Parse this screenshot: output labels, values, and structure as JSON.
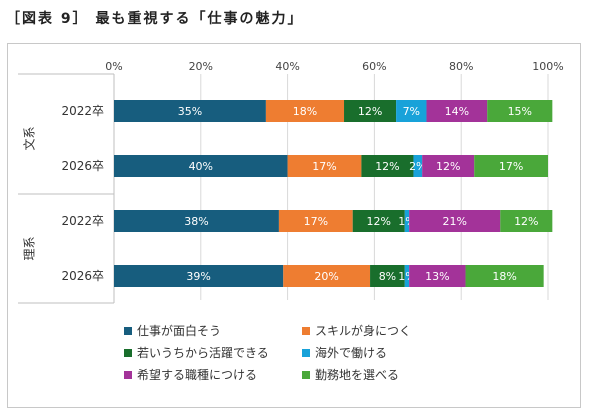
{
  "title": "［図表 9］ 最も重視する「仕事の魅力」",
  "chart_data": {
    "type": "bar",
    "orientation": "horizontal",
    "stacked": true,
    "xlim": [
      0,
      100
    ],
    "x_ticks": [
      "0%",
      "20%",
      "40%",
      "60%",
      "80%",
      "100%"
    ],
    "grid": true,
    "groups": [
      {
        "label": "文系",
        "categories": [
          "2022卒",
          "2026卒"
        ]
      },
      {
        "label": "理系",
        "categories": [
          "2022卒",
          "2026卒"
        ]
      }
    ],
    "categories": [
      "2022卒",
      "2026卒",
      "2022卒",
      "2026卒"
    ],
    "series": [
      {
        "name": "仕事が面白そう",
        "color": "#175d7e",
        "values": [
          35,
          40,
          38,
          39
        ]
      },
      {
        "name": "スキルが身につく",
        "color": "#ee7d31",
        "values": [
          18,
          17,
          17,
          20
        ]
      },
      {
        "name": "若いうちから活躍できる",
        "color": "#196e2c",
        "values": [
          12,
          12,
          12,
          8
        ]
      },
      {
        "name": "海外で働ける",
        "color": "#18a2d9",
        "values": [
          7,
          2,
          1,
          1
        ]
      },
      {
        "name": "希望する職種につける",
        "color": "#a33399",
        "values": [
          14,
          12,
          21,
          13
        ]
      },
      {
        "name": "勤務地を選べる",
        "color": "#4aa83a",
        "values": [
          15,
          17,
          12,
          18
        ]
      }
    ],
    "legend_placement": "bottom"
  }
}
